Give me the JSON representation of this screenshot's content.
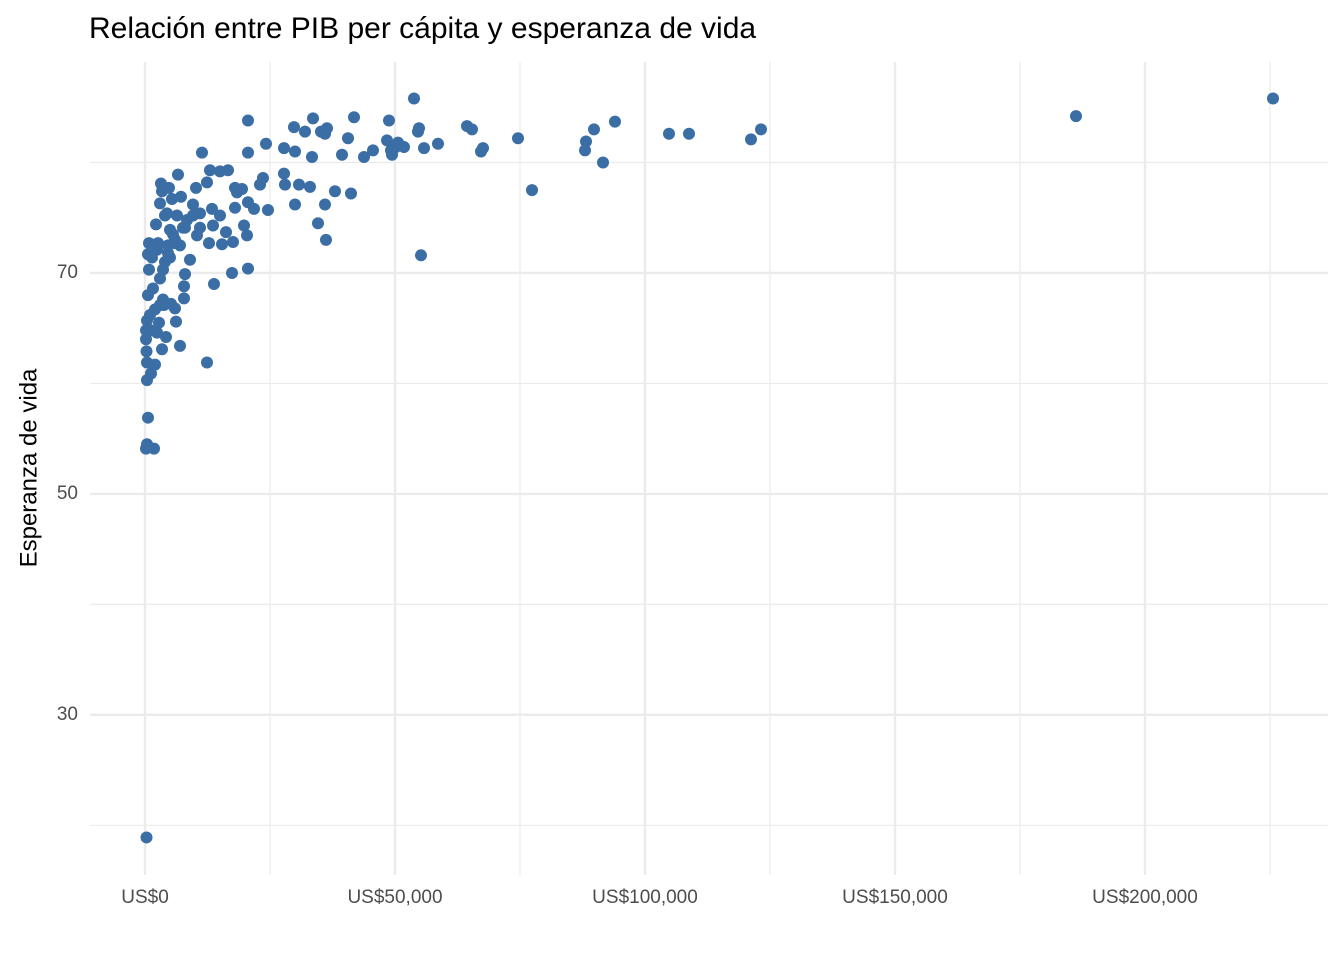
{
  "chart_data": {
    "type": "scatter",
    "title": "Relación entre PIB per cápita y esperanza de vida",
    "y_label": "Esperanza de vida",
    "color": "#3a6ea5",
    "grid": true,
    "xlim": [
      -11000,
      236600
    ],
    "ylim": [
      15.5,
      89.1
    ],
    "xticks": [
      {
        "value": 0,
        "label": "US$0"
      },
      {
        "value": 50000,
        "label": "US$50,000"
      },
      {
        "value": 100000,
        "label": "US$100,000"
      },
      {
        "value": 150000,
        "label": "US$150,000"
      },
      {
        "value": 200000,
        "label": "US$200,000"
      }
    ],
    "yticks": [
      30,
      50,
      70
    ],
    "x_minor_ticks": [
      25000,
      75000,
      125000,
      175000,
      225000
    ],
    "y_minor_ticks": [
      20,
      40,
      60,
      80
    ],
    "x": [
      225600,
      186200,
      123200,
      121200,
      108800,
      104800,
      94000,
      91600,
      89800,
      88200,
      88000,
      77400,
      74600,
      67600,
      67200,
      65400,
      64400,
      58600,
      55800,
      55200,
      54800,
      54600,
      53800,
      51800,
      50600,
      50200,
      49400,
      49200,
      48800,
      48400,
      45600,
      43800,
      41800,
      41200,
      40600,
      39400,
      38000,
      36400,
      36000,
      35200,
      33600,
      33400,
      33000,
      32000,
      30800,
      30000,
      30000,
      29800,
      28000,
      27800,
      27800,
      36000,
      34600,
      36200,
      24600,
      24200,
      23600,
      23000,
      21800,
      20600,
      20600,
      20600,
      20600,
      20400,
      19800,
      19400,
      18400,
      18000,
      18000,
      17600,
      17400,
      16600,
      16200,
      15400,
      15000,
      15000,
      13800,
      13600,
      13400,
      13000,
      12800,
      12400,
      12400,
      11400,
      11000,
      11000,
      10400,
      10200,
      9600,
      9600,
      9000,
      8400,
      8000,
      7800,
      7800,
      7600,
      7200,
      7000,
      6600,
      6400,
      6200,
      6000,
      5800,
      5600,
      5400,
      5200,
      5000,
      4800,
      4600,
      4400,
      4200,
      4000,
      3800,
      3600,
      3400,
      3200,
      3000,
      3000,
      2800,
      2600,
      2400,
      2200,
      2000,
      1800,
      1600,
      1400,
      1200,
      1000,
      800,
      800,
      600,
      600,
      600,
      400,
      400,
      200,
      200,
      200,
      300,
      300,
      400,
      400,
      3400,
      4000,
      5000,
      6000,
      4600,
      7000,
      8000,
      3600,
      2400,
      3000,
      2000,
      1200,
      4000
    ],
    "values": [
      85.8,
      84.2,
      83.0,
      82.1,
      82.6,
      82.6,
      83.7,
      80.0,
      83.0,
      81.9,
      81.1,
      77.5,
      82.2,
      81.3,
      81.0,
      83.0,
      83.3,
      81.7,
      81.3,
      71.6,
      83.1,
      82.8,
      85.8,
      81.4,
      81.8,
      81.4,
      80.7,
      81.1,
      83.8,
      82.0,
      81.1,
      80.5,
      84.1,
      77.2,
      82.2,
      80.7,
      77.4,
      83.1,
      82.6,
      82.8,
      84.0,
      80.5,
      77.8,
      82.8,
      78.0,
      81.0,
      76.2,
      83.2,
      78.0,
      81.3,
      79.0,
      76.2,
      74.5,
      73.0,
      75.7,
      81.7,
      78.6,
      78.0,
      75.8,
      83.8,
      80.9,
      76.4,
      70.4,
      73.4,
      74.3,
      77.6,
      77.3,
      77.7,
      75.9,
      72.8,
      70.0,
      79.3,
      73.7,
      72.6,
      79.2,
      75.2,
      69.0,
      74.3,
      75.8,
      79.3,
      72.7,
      78.2,
      61.9,
      80.9,
      74.1,
      75.4,
      73.4,
      77.7,
      75.2,
      76.2,
      71.2,
      74.8,
      69.9,
      68.8,
      67.7,
      74.1,
      76.9,
      63.4,
      78.9,
      75.2,
      65.6,
      66.8,
      72.7,
      73.5,
      76.7,
      67.2,
      71.4,
      77.7,
      72.5,
      75.4,
      64.2,
      71.0,
      67.1,
      67.6,
      63.1,
      78.1,
      69.5,
      76.3,
      65.5,
      72.7,
      64.6,
      74.4,
      61.7,
      54.1,
      68.6,
      71.4,
      60.9,
      66.2,
      70.3,
      72.7,
      71.7,
      68.0,
      56.9,
      60.3,
      54.5,
      64.0,
      64.8,
      54.1,
      62.9,
      18.9,
      65.7,
      61.9,
      77.4,
      77.7,
      73.9,
      73.0,
      71.8,
      72.5,
      74.1,
      70.3,
      72.1,
      67.1,
      66.7,
      64.8,
      75.2
    ]
  }
}
